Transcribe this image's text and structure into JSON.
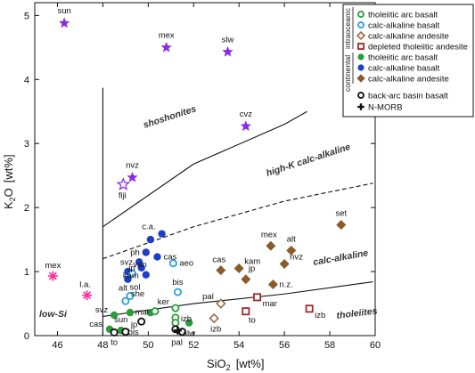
{
  "chart_data": {
    "type": "scatter",
    "xlabel": "SiO",
    "xlabel_sub": "2",
    "xlabel_unit": "[wt%]",
    "ylabel": "K",
    "ylabel_sub": "2",
    "ylabel_rest": "O",
    "ylabel_unit": "[wt%]",
    "xlim": [
      45,
      60
    ],
    "ylim": [
      0,
      5.2
    ],
    "x_ticks": [
      46,
      48,
      50,
      52,
      54,
      56,
      58,
      60
    ],
    "y_ticks": [
      0,
      1,
      2,
      3,
      4,
      5
    ],
    "regions": [
      "shoshonites",
      "high-K calc-alkaline",
      "calc-alkaline",
      "tholeiites",
      "low-Si"
    ],
    "boundaries": [
      {
        "style": "solid",
        "points": [
          [
            48,
            0
          ],
          [
            48,
            3.87
          ]
        ]
      },
      {
        "style": "solid",
        "points": [
          [
            48,
            1.7
          ],
          [
            52,
            2.68
          ],
          [
            56,
            3.3
          ],
          [
            57,
            3.5
          ]
        ]
      },
      {
        "style": "dashed",
        "points": [
          [
            48,
            1.2
          ],
          [
            52,
            1.7
          ],
          [
            56,
            2.1
          ],
          [
            59.9,
            2.38
          ]
        ]
      },
      {
        "style": "solid",
        "points": [
          [
            48,
            0.3
          ],
          [
            52,
            0.5
          ],
          [
            56,
            0.65
          ],
          [
            59.9,
            0.84
          ]
        ]
      }
    ],
    "legend": {
      "group_labels": [
        "intraoceanic",
        "continental"
      ],
      "items": [
        {
          "label": "tholeiitic arc basalt",
          "marker": "open-circle",
          "color": "#2a9d3a"
        },
        {
          "label": "calc-alkaline basalt",
          "marker": "open-circle",
          "color": "#2aa0e0"
        },
        {
          "label": "calc-alkaline  andesite",
          "marker": "open-diamond",
          "color": "#9b6a3f"
        },
        {
          "label": "depleted tholeiitic andesite",
          "marker": "open-square",
          "color": "#a12a2a"
        },
        {
          "label": "tholeiitic arc basalt",
          "marker": "filled-circle",
          "color": "#2a9d3a"
        },
        {
          "label": "calc-alkaline basalt",
          "marker": "filled-circle",
          "color": "#1c3fc8"
        },
        {
          "label": "calc-alkaline  andesite",
          "marker": "filled-diamond",
          "color": "#8b5a2b"
        },
        {
          "label": "back-arc basin basalt",
          "marker": "open-circle",
          "color": "#111111"
        },
        {
          "label": "N-MORB",
          "marker": "plus",
          "color": "#111111"
        }
      ]
    },
    "series": [
      {
        "marker": "star",
        "color": "#8a2be2",
        "points": [
          {
            "x": 46.3,
            "y": 4.88,
            "label": "sun"
          },
          {
            "x": 50.8,
            "y": 4.5,
            "label": "mex"
          },
          {
            "x": 53.5,
            "y": 4.43,
            "label": "slw"
          },
          {
            "x": 54.3,
            "y": 3.27,
            "label": "cvz"
          },
          {
            "x": 49.3,
            "y": 2.47,
            "label": "nvz"
          }
        ]
      },
      {
        "marker": "open-star",
        "color": "#8a2be2",
        "points": [
          {
            "x": 48.9,
            "y": 2.36,
            "label": "fiji"
          }
        ]
      },
      {
        "marker": "asterisk",
        "color": "#ff2d9a",
        "points": [
          {
            "x": 45.8,
            "y": 0.93,
            "label": "mex"
          },
          {
            "x": 47.3,
            "y": 0.63,
            "label": "l.a."
          }
        ]
      },
      {
        "marker": "filled-circle",
        "color": "#1c3fc8",
        "points": [
          {
            "x": 50.6,
            "y": 1.59,
            "label": "c.a."
          },
          {
            "x": 50.1,
            "y": 1.5,
            "label": ""
          },
          {
            "x": 49.9,
            "y": 1.3,
            "label": "ph"
          },
          {
            "x": 50.4,
            "y": 1.23,
            "label": "cas"
          },
          {
            "x": 49.6,
            "y": 1.15,
            "label": "svz"
          },
          {
            "x": 49.7,
            "y": 1.06,
            "label": "jp"
          },
          {
            "x": 49.9,
            "y": 0.95,
            "label": "kam"
          },
          {
            "x": 49.1,
            "y": 1.0,
            "label": "van"
          },
          {
            "x": 49.1,
            "y": 0.88,
            "label": "sol"
          }
        ]
      },
      {
        "marker": "open-circle",
        "color": "#2aa0e0",
        "points": [
          {
            "x": 51.1,
            "y": 1.13,
            "label": "aeo"
          },
          {
            "x": 49.3,
            "y": 0.97,
            "label": ""
          },
          {
            "x": 51.3,
            "y": 0.68,
            "label": "bis"
          },
          {
            "x": 49.2,
            "y": 0.62,
            "label": "alt"
          },
          {
            "x": 49.0,
            "y": 0.54,
            "label": "she"
          }
        ]
      },
      {
        "marker": "filled-diamond",
        "color": "#8b5a2b",
        "points": [
          {
            "x": 58.5,
            "y": 1.73,
            "label": "set"
          },
          {
            "x": 55.4,
            "y": 1.4,
            "label": "mex"
          },
          {
            "x": 56.3,
            "y": 1.33,
            "label": "alt"
          },
          {
            "x": 56.0,
            "y": 1.12,
            "label": "nvz"
          },
          {
            "x": 53.2,
            "y": 1.02,
            "label": "cas"
          },
          {
            "x": 54.0,
            "y": 1.05,
            "label": "kam"
          },
          {
            "x": 54.3,
            "y": 0.88,
            "label": "jp"
          },
          {
            "x": 55.5,
            "y": 0.8,
            "label": "n.z."
          }
        ]
      },
      {
        "marker": "open-diamond",
        "color": "#9b6a3f",
        "points": [
          {
            "x": 53.2,
            "y": 0.5,
            "label": "pal"
          },
          {
            "x": 52.9,
            "y": 0.27,
            "label": "izb"
          }
        ]
      },
      {
        "marker": "open-square",
        "color": "#a12a2a",
        "points": [
          {
            "x": 54.8,
            "y": 0.6,
            "label": "mar"
          },
          {
            "x": 54.3,
            "y": 0.38,
            "label": "to"
          },
          {
            "x": 57.1,
            "y": 0.42,
            "label": "izb"
          }
        ]
      },
      {
        "marker": "filled-circle",
        "color": "#2a9d3a",
        "points": [
          {
            "x": 48.5,
            "y": 0.32,
            "label": "svz"
          },
          {
            "x": 49.2,
            "y": 0.36,
            "label": ""
          },
          {
            "x": 48.3,
            "y": 0.1,
            "label": "cas"
          },
          {
            "x": 48.8,
            "y": 0.08,
            "label": "sun"
          },
          {
            "x": 50.1,
            "y": 0.36,
            "label": ""
          },
          {
            "x": 51.8,
            "y": 0.2,
            "label": "slw"
          }
        ]
      },
      {
        "marker": "open-circle",
        "color": "#2a9d3a",
        "points": [
          {
            "x": 51.2,
            "y": 0.43,
            "label": "ker"
          },
          {
            "x": 50.3,
            "y": 0.38,
            "label": "mar"
          },
          {
            "x": 51.2,
            "y": 0.28,
            "label": "izb"
          },
          {
            "x": 51.2,
            "y": 0.2,
            "label": ""
          }
        ]
      },
      {
        "marker": "open-circle",
        "color": "#111111",
        "points": [
          {
            "x": 48.5,
            "y": 0.05,
            "label": "to"
          },
          {
            "x": 49.0,
            "y": 0.06,
            "label": "jp"
          },
          {
            "x": 49.7,
            "y": 0.22,
            "label": "bis"
          },
          {
            "x": 51.2,
            "y": 0.1,
            "label": ""
          },
          {
            "x": 51.5,
            "y": 0.06,
            "label": "pal"
          }
        ]
      },
      {
        "marker": "plus",
        "color": "#111111",
        "points": [
          {
            "x": 51.3,
            "y": 0.08,
            "label": ""
          }
        ]
      }
    ]
  }
}
